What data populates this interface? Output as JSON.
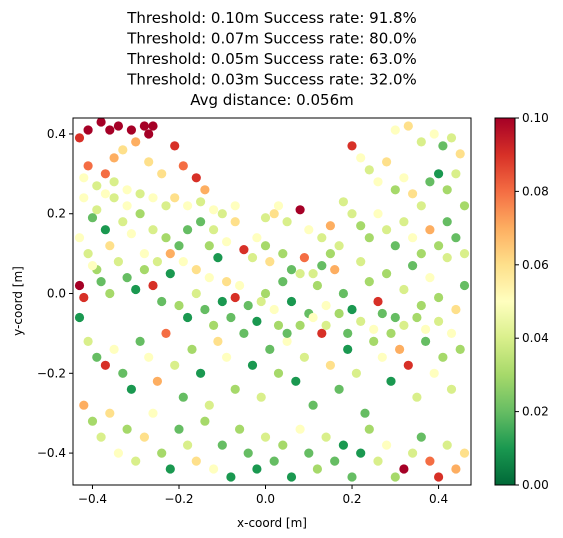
{
  "chart_data": {
    "type": "scatter",
    "title_lines": [
      "Threshold: 0.10m   Success rate: 91.8%",
      "Threshold: 0.07m   Success rate: 80.0%",
      "Threshold: 0.05m   Success rate: 63.0%",
      "Threshold: 0.03m   Success rate: 32.0%",
      "Avg distance: 0.056m"
    ],
    "xlabel": "x-coord [m]",
    "ylabel": "y-coord [m]",
    "xlim": [
      -0.445,
      0.475
    ],
    "ylim": [
      -0.48,
      0.44
    ],
    "xticks": [
      -0.4,
      -0.2,
      0.0,
      0.2,
      0.4
    ],
    "yticks": [
      -0.4,
      -0.2,
      0.0,
      0.2,
      0.4
    ],
    "xtick_labels": [
      "−0.4",
      "−0.2",
      "0.0",
      "0.2",
      "0.4"
    ],
    "ytick_labels": [
      "−0.4",
      "−0.2",
      "0.0",
      "0.2",
      "0.4"
    ],
    "grid": false,
    "colormap": "RdYlGn_r",
    "colorbar": {
      "range": [
        0.0,
        0.1
      ],
      "ticks": [
        0.0,
        0.02,
        0.04,
        0.06,
        0.08,
        0.1
      ],
      "tick_labels": [
        "0.00",
        "0.02",
        "0.04",
        "0.06",
        "0.08",
        "0.10"
      ]
    },
    "points": [
      [
        -0.43,
        0.39,
        0.09
      ],
      [
        -0.41,
        0.41,
        0.1
      ],
      [
        -0.38,
        0.43,
        0.1
      ],
      [
        -0.36,
        0.41,
        0.1
      ],
      [
        -0.34,
        0.42,
        0.1
      ],
      [
        -0.31,
        0.41,
        0.1
      ],
      [
        -0.28,
        0.42,
        0.1
      ],
      [
        -0.27,
        0.4,
        0.1
      ],
      [
        -0.26,
        0.42,
        0.1
      ],
      [
        -0.21,
        0.37,
        0.09
      ],
      [
        -0.19,
        0.32,
        0.08
      ],
      [
        -0.16,
        0.29,
        0.09
      ],
      [
        -0.14,
        0.26,
        0.07
      ],
      [
        -0.41,
        0.32,
        0.08
      ],
      [
        -0.37,
        0.3,
        0.08
      ],
      [
        -0.35,
        0.34,
        0.07
      ],
      [
        -0.33,
        0.36,
        0.06
      ],
      [
        -0.3,
        0.38,
        0.07
      ],
      [
        -0.27,
        0.33,
        0.06
      ],
      [
        -0.24,
        0.3,
        0.06
      ],
      [
        -0.42,
        0.24,
        0.05
      ],
      [
        -0.39,
        0.21,
        0.04
      ],
      [
        -0.4,
        0.19,
        0.02
      ],
      [
        -0.37,
        0.16,
        0.01
      ],
      [
        -0.35,
        0.24,
        0.04
      ],
      [
        -0.32,
        0.22,
        0.05
      ],
      [
        -0.29,
        0.2,
        0.03
      ],
      [
        -0.26,
        0.16,
        0.04
      ],
      [
        -0.23,
        0.14,
        0.03
      ],
      [
        -0.2,
        0.12,
        0.02
      ],
      [
        -0.18,
        0.16,
        0.02
      ],
      [
        -0.15,
        0.18,
        0.02
      ],
      [
        -0.13,
        0.12,
        0.03
      ],
      [
        -0.11,
        0.09,
        0.01
      ],
      [
        -0.43,
        0.14,
        0.05
      ],
      [
        -0.41,
        0.1,
        0.04
      ],
      [
        -0.39,
        0.06,
        0.03
      ],
      [
        -0.43,
        0.02,
        0.1
      ],
      [
        -0.42,
        -0.01,
        0.09
      ],
      [
        -0.4,
        0.07,
        0.05
      ],
      [
        -0.38,
        0.03,
        0.02
      ],
      [
        -0.36,
        0.0,
        0.03
      ],
      [
        -0.34,
        0.08,
        0.04
      ],
      [
        -0.32,
        0.04,
        0.02
      ],
      [
        -0.3,
        0.01,
        0.01
      ],
      [
        -0.28,
        0.06,
        0.03
      ],
      [
        -0.26,
        0.02,
        0.09
      ],
      [
        -0.24,
        -0.02,
        0.02
      ],
      [
        -0.22,
        0.05,
        0.01
      ],
      [
        -0.2,
        -0.03,
        0.03
      ],
      [
        -0.18,
        -0.06,
        0.01
      ],
      [
        -0.16,
        0.0,
        0.04
      ],
      [
        -0.14,
        -0.04,
        0.02
      ],
      [
        -0.12,
        -0.08,
        0.03
      ],
      [
        -0.1,
        -0.02,
        0.01
      ],
      [
        -0.08,
        -0.06,
        0.02
      ],
      [
        -0.06,
        0.02,
        0.05
      ],
      [
        -0.04,
        -0.03,
        0.02
      ],
      [
        -0.02,
        -0.07,
        0.01
      ],
      [
        0.0,
        0.0,
        0.03
      ],
      [
        0.02,
        -0.04,
        0.05
      ],
      [
        0.04,
        0.03,
        0.02
      ],
      [
        0.06,
        -0.02,
        0.01
      ],
      [
        0.08,
        0.05,
        0.04
      ],
      [
        0.1,
        -0.05,
        0.02
      ],
      [
        0.12,
        0.02,
        0.03
      ],
      [
        0.14,
        -0.03,
        0.05
      ],
      [
        0.16,
        0.06,
        0.07
      ],
      [
        0.18,
        0.0,
        0.02
      ],
      [
        0.2,
        -0.04,
        0.01
      ],
      [
        0.22,
        0.08,
        0.04
      ],
      [
        0.24,
        0.03,
        0.03
      ],
      [
        0.26,
        -0.02,
        0.09
      ],
      [
        0.28,
        0.05,
        0.03
      ],
      [
        0.3,
        -0.06,
        0.02
      ],
      [
        0.32,
        0.01,
        0.04
      ],
      [
        0.34,
        0.07,
        0.02
      ],
      [
        0.36,
        -0.03,
        0.03
      ],
      [
        0.38,
        0.04,
        0.05
      ],
      [
        0.4,
        -0.01,
        0.03
      ],
      [
        0.42,
        0.09,
        0.04
      ],
      [
        0.44,
        -0.04,
        0.06
      ],
      [
        0.46,
        0.02,
        0.02
      ],
      [
        -0.43,
        -0.06,
        0.01
      ],
      [
        -0.41,
        -0.12,
        0.04
      ],
      [
        -0.39,
        -0.16,
        0.02
      ],
      [
        -0.37,
        -0.18,
        0.09
      ],
      [
        -0.35,
        -0.14,
        0.05
      ],
      [
        -0.33,
        -0.2,
        0.02
      ],
      [
        -0.31,
        -0.24,
        0.01
      ],
      [
        -0.29,
        -0.12,
        0.02
      ],
      [
        -0.27,
        -0.16,
        0.05
      ],
      [
        -0.25,
        -0.22,
        0.07
      ],
      [
        -0.23,
        -0.1,
        0.08
      ],
      [
        -0.21,
        -0.18,
        0.04
      ],
      [
        -0.19,
        -0.26,
        0.02
      ],
      [
        -0.17,
        -0.14,
        0.03
      ],
      [
        -0.15,
        -0.2,
        0.01
      ],
      [
        -0.13,
        -0.28,
        0.04
      ],
      [
        -0.11,
        -0.12,
        0.06
      ],
      [
        -0.09,
        -0.16,
        0.05
      ],
      [
        -0.07,
        -0.24,
        0.03
      ],
      [
        -0.05,
        -0.1,
        0.02
      ],
      [
        -0.03,
        -0.18,
        0.01
      ],
      [
        -0.01,
        -0.26,
        0.04
      ],
      [
        0.01,
        -0.14,
        0.02
      ],
      [
        0.03,
        -0.2,
        0.03
      ],
      [
        0.05,
        -0.12,
        0.05
      ],
      [
        0.07,
        -0.22,
        0.01
      ],
      [
        0.09,
        -0.16,
        0.04
      ],
      [
        0.11,
        -0.28,
        0.02
      ],
      [
        0.13,
        -0.1,
        0.09
      ],
      [
        0.15,
        -0.18,
        0.06
      ],
      [
        0.17,
        -0.24,
        0.02
      ],
      [
        0.19,
        -0.14,
        0.01
      ],
      [
        0.21,
        -0.2,
        0.04
      ],
      [
        0.23,
        -0.3,
        0.02
      ],
      [
        0.25,
        -0.12,
        0.03
      ],
      [
        0.27,
        -0.16,
        0.05
      ],
      [
        0.29,
        -0.22,
        0.01
      ],
      [
        0.31,
        -0.14,
        0.07
      ],
      [
        0.33,
        -0.18,
        0.09
      ],
      [
        0.35,
        -0.26,
        0.04
      ],
      [
        0.37,
        -0.12,
        0.02
      ],
      [
        0.39,
        -0.2,
        0.05
      ],
      [
        0.41,
        -0.16,
        0.03
      ],
      [
        0.43,
        -0.24,
        0.04
      ],
      [
        0.45,
        -0.14,
        0.03
      ],
      [
        -0.42,
        -0.28,
        0.07
      ],
      [
        -0.4,
        -0.32,
        0.03
      ],
      [
        -0.38,
        -0.36,
        0.04
      ],
      [
        -0.36,
        -0.3,
        0.06
      ],
      [
        -0.34,
        -0.4,
        0.05
      ],
      [
        -0.32,
        -0.34,
        0.03
      ],
      [
        -0.3,
        -0.42,
        0.04
      ],
      [
        -0.28,
        -0.36,
        0.06
      ],
      [
        -0.26,
        -0.3,
        0.05
      ],
      [
        -0.24,
        -0.4,
        0.03
      ],
      [
        -0.22,
        -0.44,
        0.01
      ],
      [
        -0.2,
        -0.34,
        0.02
      ],
      [
        -0.18,
        -0.38,
        0.04
      ],
      [
        -0.16,
        -0.42,
        0.06
      ],
      [
        -0.14,
        -0.32,
        0.03
      ],
      [
        -0.12,
        -0.44,
        0.05
      ],
      [
        -0.1,
        -0.38,
        0.02
      ],
      [
        -0.08,
        -0.46,
        0.01
      ],
      [
        -0.06,
        -0.34,
        0.03
      ],
      [
        -0.04,
        -0.4,
        0.02
      ],
      [
        -0.02,
        -0.44,
        0.01
      ],
      [
        0.0,
        -0.36,
        0.04
      ],
      [
        0.02,
        -0.42,
        0.02
      ],
      [
        0.04,
        -0.38,
        0.03
      ],
      [
        0.06,
        -0.46,
        0.01
      ],
      [
        0.08,
        -0.34,
        0.05
      ],
      [
        0.1,
        -0.4,
        0.02
      ],
      [
        0.12,
        -0.44,
        0.03
      ],
      [
        0.14,
        -0.36,
        0.04
      ],
      [
        0.16,
        -0.42,
        0.02
      ],
      [
        0.18,
        -0.38,
        0.01
      ],
      [
        0.2,
        -0.46,
        0.02
      ],
      [
        0.22,
        -0.4,
        0.01
      ],
      [
        0.24,
        -0.34,
        0.03
      ],
      [
        0.26,
        -0.42,
        0.04
      ],
      [
        0.28,
        -0.38,
        0.05
      ],
      [
        0.3,
        -0.46,
        0.03
      ],
      [
        0.32,
        -0.44,
        0.1
      ],
      [
        0.34,
        -0.4,
        0.04
      ],
      [
        0.36,
        -0.36,
        0.02
      ],
      [
        0.38,
        -0.42,
        0.08
      ],
      [
        0.4,
        -0.46,
        0.09
      ],
      [
        0.42,
        -0.38,
        0.04
      ],
      [
        0.44,
        -0.44,
        0.07
      ],
      [
        0.46,
        -0.4,
        0.06
      ],
      [
        0.3,
        0.41,
        0.05
      ],
      [
        0.33,
        0.42,
        0.06
      ],
      [
        0.36,
        0.38,
        0.04
      ],
      [
        0.39,
        0.4,
        0.05
      ],
      [
        0.41,
        0.37,
        0.02
      ],
      [
        0.43,
        0.39,
        0.04
      ],
      [
        0.45,
        0.35,
        0.06
      ],
      [
        0.2,
        0.37,
        0.09
      ],
      [
        0.22,
        0.34,
        0.05
      ],
      [
        0.24,
        0.31,
        0.04
      ],
      [
        0.26,
        0.28,
        0.05
      ],
      [
        0.28,
        0.33,
        0.06
      ],
      [
        0.3,
        0.26,
        0.03
      ],
      [
        0.32,
        0.29,
        0.05
      ],
      [
        0.34,
        0.25,
        0.06
      ],
      [
        0.36,
        0.22,
        0.04
      ],
      [
        0.38,
        0.28,
        0.02
      ],
      [
        0.4,
        0.3,
        0.01
      ],
      [
        0.42,
        0.26,
        0.03
      ],
      [
        0.44,
        0.3,
        0.04
      ],
      [
        0.46,
        0.22,
        0.03
      ],
      [
        0.18,
        0.23,
        0.04
      ],
      [
        0.2,
        0.2,
        0.04
      ],
      [
        0.22,
        0.17,
        0.03
      ],
      [
        0.24,
        0.14,
        0.03
      ],
      [
        0.26,
        0.2,
        0.05
      ],
      [
        0.28,
        0.16,
        0.04
      ],
      [
        0.3,
        0.12,
        0.02
      ],
      [
        0.32,
        0.18,
        0.04
      ],
      [
        0.34,
        0.14,
        0.05
      ],
      [
        0.36,
        0.1,
        0.03
      ],
      [
        0.38,
        0.16,
        0.07
      ],
      [
        0.4,
        0.12,
        0.03
      ],
      [
        0.42,
        0.18,
        0.02
      ],
      [
        0.44,
        0.14,
        0.02
      ],
      [
        0.46,
        0.1,
        0.04
      ],
      [
        0.02,
        0.2,
        0.06
      ],
      [
        0.05,
        0.18,
        0.04
      ],
      [
        0.08,
        0.21,
        0.1
      ],
      [
        0.1,
        0.16,
        0.05
      ],
      [
        0.13,
        0.14,
        0.04
      ],
      [
        0.15,
        0.17,
        0.07
      ],
      [
        -0.02,
        0.14,
        0.05
      ],
      [
        0.0,
        0.12,
        0.03
      ],
      [
        -0.05,
        0.11,
        0.09
      ],
      [
        -0.09,
        0.13,
        0.05
      ],
      [
        -0.12,
        0.16,
        0.04
      ],
      [
        -0.07,
        0.18,
        0.06
      ],
      [
        -0.03,
        0.09,
        0.04
      ],
      [
        0.01,
        0.08,
        0.06
      ],
      [
        0.04,
        0.1,
        0.03
      ],
      [
        0.06,
        0.06,
        0.02
      ],
      [
        0.09,
        0.09,
        0.08
      ],
      [
        0.11,
        0.05,
        0.04
      ],
      [
        0.13,
        0.07,
        0.02
      ],
      [
        0.15,
        0.1,
        0.03
      ],
      [
        0.17,
        0.12,
        0.04
      ],
      [
        -0.31,
        0.15,
        0.05
      ],
      [
        -0.33,
        0.18,
        0.04
      ],
      [
        -0.36,
        0.12,
        0.06
      ],
      [
        -0.28,
        0.1,
        0.05
      ],
      [
        -0.25,
        0.08,
        0.04
      ],
      [
        -0.22,
        0.1,
        0.07
      ],
      [
        -0.19,
        0.08,
        0.05
      ],
      [
        -0.16,
        0.06,
        0.06
      ],
      [
        -0.13,
        0.04,
        0.05
      ],
      [
        -0.09,
        0.03,
        0.06
      ],
      [
        -0.07,
        -0.01,
        0.09
      ],
      [
        -0.01,
        -0.02,
        0.04
      ],
      [
        0.03,
        -0.08,
        0.03
      ],
      [
        0.05,
        -0.1,
        0.02
      ],
      [
        0.08,
        -0.08,
        0.03
      ],
      [
        0.11,
        -0.06,
        0.05
      ],
      [
        0.14,
        -0.08,
        0.04
      ],
      [
        0.17,
        -0.05,
        0.03
      ],
      [
        0.19,
        -0.1,
        0.02
      ],
      [
        0.22,
        -0.07,
        0.04
      ],
      [
        0.25,
        -0.09,
        0.05
      ],
      [
        0.27,
        -0.05,
        0.02
      ],
      [
        0.29,
        -0.1,
        0.03
      ],
      [
        0.32,
        -0.08,
        0.04
      ],
      [
        0.35,
        -0.06,
        0.03
      ],
      [
        0.37,
        -0.09,
        0.05
      ],
      [
        0.4,
        -0.07,
        0.04
      ],
      [
        0.43,
        -0.1,
        0.05
      ],
      [
        -0.42,
        0.29,
        0.05
      ],
      [
        -0.39,
        0.27,
        0.04
      ],
      [
        -0.37,
        0.25,
        0.05
      ],
      [
        -0.35,
        0.28,
        0.04
      ],
      [
        -0.32,
        0.26,
        0.05
      ],
      [
        -0.29,
        0.25,
        0.04
      ],
      [
        -0.26,
        0.24,
        0.05
      ],
      [
        -0.23,
        0.22,
        0.04
      ],
      [
        -0.21,
        0.24,
        0.06
      ],
      [
        -0.18,
        0.22,
        0.05
      ],
      [
        -0.15,
        0.23,
        0.04
      ],
      [
        -0.12,
        0.21,
        0.05
      ],
      [
        -0.1,
        0.2,
        0.04
      ],
      [
        -0.07,
        0.22,
        0.05
      ],
      [
        0.0,
        0.19,
        0.04
      ],
      [
        0.03,
        0.22,
        0.05
      ]
    ]
  }
}
